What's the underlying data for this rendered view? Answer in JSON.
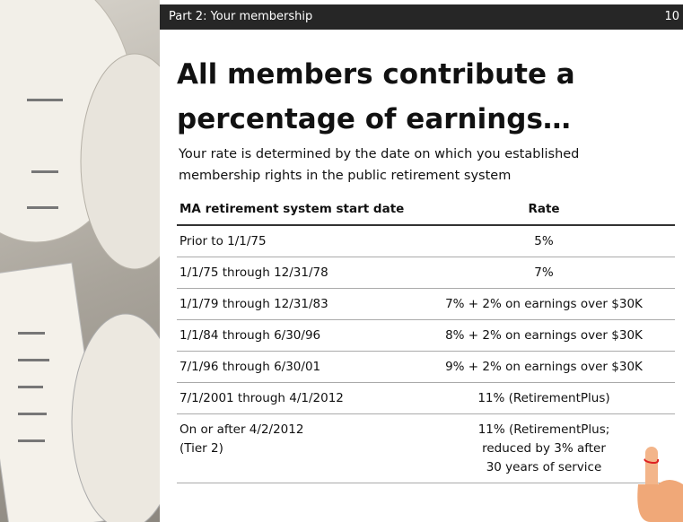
{
  "header": {
    "section": "Part 2: Your membership",
    "page": "10"
  },
  "title": "All members contribute a percentage of earnings…",
  "subtitle": "Your rate is determined by the date on which you established membership rights in the public retirement system",
  "table": {
    "columns": [
      "MA retirement system start date",
      "Rate"
    ],
    "rows": [
      [
        "Prior to 1/1/75",
        "5%"
      ],
      [
        "1/1/75 through 12/31/78",
        "7%"
      ],
      [
        "1/1/79 through 12/31/83",
        "7% + 2% on earnings over $30K"
      ],
      [
        "1/1/84 through 6/30/96",
        "8% + 2% on earnings over $30K"
      ],
      [
        "7/1/96 through 6/30/01",
        "9% + 2% on earnings over $30K"
      ],
      [
        "7/1/2001 through 4/1/2012",
        "11% (RetirementPlus)"
      ],
      [
        "On or after 4/2/2012\n(Tier 2)",
        "11% (RetirementPlus;\nreduced by 3% after\n30 years of service"
      ]
    ]
  }
}
